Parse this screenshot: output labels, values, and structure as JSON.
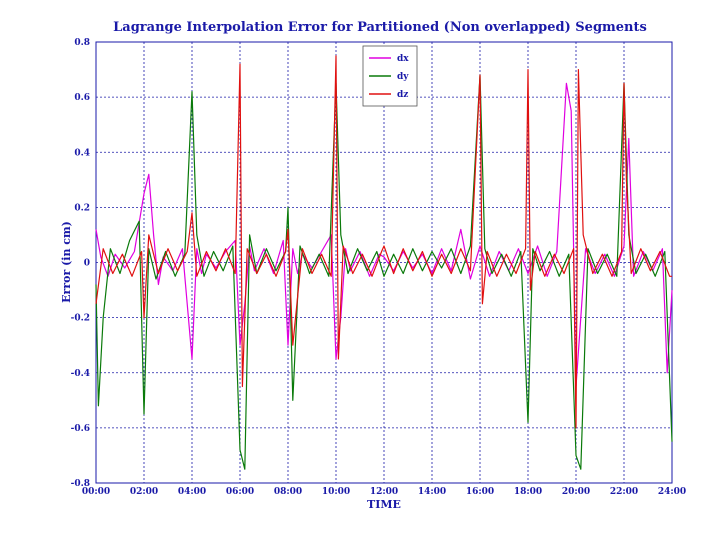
{
  "colors": {
    "text": "#1a1aa8",
    "grid": "#1a1aa8",
    "dx": "#e000e0",
    "dy": "#0a7a0a",
    "dz": "#e01010"
  },
  "chart_data": {
    "type": "line",
    "title": "Lagrange Interpolation Error for Partitioned (Non overlapped) Segments",
    "xlabel": "TIME",
    "ylabel": "Error (in cm)",
    "xlim": [
      0,
      24
    ],
    "ylim": [
      -0.8,
      0.8
    ],
    "x_tick_labels": [
      "00:00",
      "02:00",
      "04:00",
      "06:00",
      "08:00",
      "10:00",
      "12:00",
      "14:00",
      "16:00",
      "18:00",
      "20:00",
      "22:00",
      "24:00"
    ],
    "y_tick_labels": [
      "-0.8",
      "-0.6",
      "-0.4",
      "-0.2",
      "0",
      "0.2",
      "0.4",
      "0.6",
      "0.8"
    ],
    "legend_position": "top-center",
    "series": [
      {
        "name": "dx",
        "x": [
          0,
          0.2,
          0.5,
          0.8,
          1.2,
          1.6,
          2.0,
          2.2,
          2.4,
          2.6,
          2.8,
          3.2,
          3.6,
          4.0,
          4.2,
          4.4,
          4.6,
          5.0,
          5.4,
          5.8,
          6.0,
          6.2,
          6.4,
          6.6,
          7.0,
          7.4,
          7.8,
          8.0,
          8.2,
          8.4,
          8.6,
          9.0,
          9.4,
          9.8,
          10.0,
          10.2,
          10.4,
          10.6,
          11.0,
          11.4,
          11.8,
          12.0,
          12.4,
          12.8,
          13.2,
          13.6,
          14.0,
          14.4,
          14.8,
          15.2,
          15.6,
          16.0,
          16.4,
          16.8,
          17.2,
          17.6,
          18.0,
          18.4,
          18.8,
          19.2,
          19.6,
          19.8,
          20.0,
          20.2,
          20.4,
          20.8,
          21.2,
          21.6,
          22.0,
          22.2,
          22.4,
          22.8,
          23.2,
          23.6,
          23.8,
          24.0
        ],
        "y": [
          0.12,
          0.02,
          -0.05,
          0.03,
          -0.02,
          0.04,
          0.25,
          0.32,
          0.1,
          -0.08,
          0.02,
          -0.03,
          0.05,
          -0.35,
          0.05,
          -0.04,
          0.03,
          -0.02,
          0.04,
          0.08,
          -0.3,
          -0.15,
          0.06,
          -0.03,
          0.05,
          -0.04,
          0.08,
          -0.3,
          0.05,
          -0.04,
          0.03,
          -0.02,
          0.04,
          0.1,
          -0.35,
          -0.2,
          0.05,
          -0.03,
          0.04,
          -0.05,
          0.03,
          0.02,
          -0.03,
          0.04,
          -0.02,
          0.03,
          -0.04,
          0.05,
          -0.03,
          0.12,
          -0.06,
          0.06,
          -0.05,
          0.04,
          -0.03,
          0.05,
          -0.04,
          0.06,
          -0.05,
          0.04,
          0.65,
          0.55,
          -0.45,
          -0.2,
          0.05,
          -0.04,
          0.03,
          -0.05,
          0.06,
          0.45,
          -0.05,
          0.04,
          -0.03,
          0.05,
          -0.4,
          -0.1
        ]
      },
      {
        "name": "dy",
        "x": [
          0,
          0.1,
          0.3,
          0.6,
          1.0,
          1.4,
          1.8,
          2.0,
          2.2,
          2.5,
          2.9,
          3.3,
          3.7,
          4.0,
          4.2,
          4.5,
          4.9,
          5.3,
          5.7,
          6.0,
          6.2,
          6.4,
          6.7,
          7.1,
          7.5,
          7.9,
          8.0,
          8.2,
          8.5,
          8.9,
          9.3,
          9.7,
          10.0,
          10.2,
          10.5,
          10.9,
          11.3,
          11.7,
          12.0,
          12.4,
          12.8,
          13.2,
          13.6,
          14.0,
          14.4,
          14.8,
          15.2,
          15.6,
          16.0,
          16.2,
          16.5,
          16.9,
          17.3,
          17.7,
          18.0,
          18.2,
          18.5,
          18.9,
          19.3,
          19.7,
          20.0,
          20.2,
          20.5,
          20.9,
          21.3,
          21.7,
          22.0,
          22.2,
          22.5,
          22.9,
          23.3,
          23.7,
          24.0
        ],
        "y": [
          -0.08,
          -0.52,
          -0.2,
          0.05,
          -0.04,
          0.08,
          0.15,
          -0.55,
          0.05,
          -0.06,
          0.04,
          -0.05,
          0.03,
          0.62,
          0.1,
          -0.05,
          0.04,
          -0.03,
          0.06,
          -0.68,
          -0.75,
          0.1,
          -0.04,
          0.05,
          -0.03,
          0.04,
          0.2,
          -0.5,
          0.06,
          -0.04,
          0.03,
          -0.05,
          0.65,
          0.1,
          -0.04,
          0.05,
          -0.03,
          0.04,
          -0.05,
          0.03,
          -0.04,
          0.05,
          -0.03,
          0.04,
          -0.02,
          0.05,
          -0.04,
          0.06,
          0.68,
          0.05,
          -0.04,
          0.03,
          -0.05,
          0.04,
          -0.58,
          0.05,
          -0.03,
          0.04,
          -0.05,
          0.03,
          -0.7,
          -0.75,
          0.05,
          -0.04,
          0.03,
          -0.05,
          0.65,
          0.1,
          -0.04,
          0.03,
          -0.05,
          0.04,
          -0.65
        ]
      },
      {
        "name": "dz",
        "x": [
          0,
          0.3,
          0.7,
          1.1,
          1.5,
          1.9,
          2.0,
          2.2,
          2.6,
          3.0,
          3.4,
          3.8,
          4.0,
          4.2,
          4.6,
          5.0,
          5.4,
          5.8,
          6.0,
          6.1,
          6.3,
          6.7,
          7.1,
          7.5,
          7.9,
          8.0,
          8.2,
          8.6,
          9.0,
          9.4,
          9.8,
          10.0,
          10.1,
          10.3,
          10.7,
          11.1,
          11.5,
          11.9,
          12.0,
          12.4,
          12.8,
          13.2,
          13.6,
          14.0,
          14.4,
          14.8,
          15.2,
          15.6,
          16.0,
          16.1,
          16.3,
          16.7,
          17.1,
          17.5,
          17.9,
          18.0,
          18.1,
          18.3,
          18.7,
          19.1,
          19.5,
          19.9,
          20.0,
          20.1,
          20.3,
          20.7,
          21.1,
          21.5,
          21.9,
          22.0,
          22.1,
          22.3,
          22.7,
          23.1,
          23.5,
          23.9,
          24.0
        ],
        "y": [
          -0.15,
          0.05,
          -0.04,
          0.03,
          -0.05,
          0.04,
          -0.2,
          0.1,
          -0.04,
          0.05,
          -0.03,
          0.04,
          0.18,
          -0.05,
          0.04,
          -0.03,
          0.05,
          -0.04,
          0.72,
          -0.45,
          0.05,
          -0.04,
          0.03,
          -0.05,
          0.04,
          0.12,
          -0.3,
          0.05,
          -0.04,
          0.03,
          -0.05,
          0.75,
          -0.35,
          0.06,
          -0.04,
          0.03,
          -0.05,
          0.04,
          0.06,
          -0.04,
          0.05,
          -0.03,
          0.04,
          -0.05,
          0.03,
          -0.04,
          0.05,
          -0.03,
          0.68,
          -0.15,
          0.04,
          -0.05,
          0.03,
          -0.04,
          0.05,
          0.7,
          -0.1,
          0.04,
          -0.05,
          0.03,
          -0.04,
          0.05,
          -0.6,
          0.7,
          0.1,
          -0.04,
          0.03,
          -0.05,
          0.04,
          0.65,
          0.3,
          -0.04,
          0.05,
          -0.03,
          0.04,
          -0.05,
          -0.05
        ]
      }
    ]
  }
}
